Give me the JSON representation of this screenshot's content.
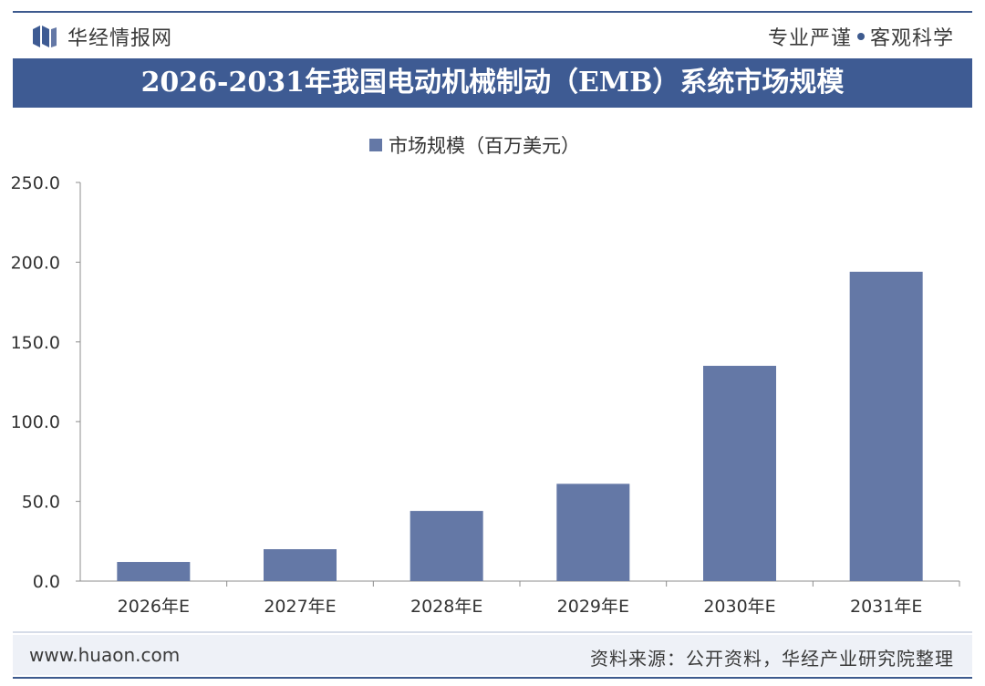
{
  "header": {
    "brand": "华经情报网",
    "slogan_left": "专业严谨",
    "slogan_right": "客观科学"
  },
  "footer": {
    "url": "www.huaon.com",
    "source": "资料来源：公开资料，华经产业研究院整理"
  },
  "colors": {
    "accent": "#3e5b93",
    "bar": "#6478a6"
  },
  "chart_data": {
    "type": "bar",
    "title": "2026-2031年我国电动机械制动（EMB）系统市场规模",
    "categories": [
      "2026年E",
      "2027年E",
      "2028年E",
      "2029年E",
      "2030年E",
      "2031年E"
    ],
    "series": [
      {
        "name": "市场规模（百万美元）",
        "values": [
          12.0,
          20.0,
          44.0,
          61.0,
          135.0,
          194.0
        ]
      }
    ],
    "ylim": [
      0,
      250
    ],
    "yticks": [
      "0.0",
      "50.0",
      "100.0",
      "150.0",
      "200.0",
      "250.0"
    ],
    "legend_position": "top-center",
    "grid": false
  }
}
